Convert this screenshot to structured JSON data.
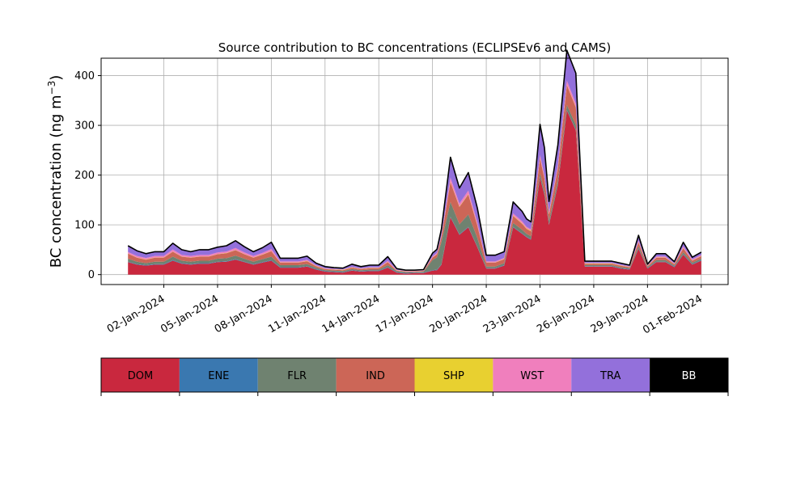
{
  "chart_data": {
    "type": "area",
    "stacked": true,
    "title": "Source contribution to BC concentrations (ECLIPSEv6 and CAMS)",
    "ylabel_main": "BC concentration (ng m",
    "ylabel_sup": "−3",
    "ylabel_close": ")",
    "xlabel": "",
    "xlim": [
      "2023-12-29T12:00",
      "2024-02-02T12:00"
    ],
    "ylim": [
      -20,
      435
    ],
    "grid": true,
    "yticks": [
      0,
      100,
      200,
      300,
      400
    ],
    "ytick_labels": [
      "0",
      "100",
      "200",
      "300",
      "400"
    ],
    "xticks": [
      "2024-01-02",
      "2024-01-05",
      "2024-01-08",
      "2024-01-11",
      "2024-01-14",
      "2024-01-17",
      "2024-01-20",
      "2024-01-23",
      "2024-01-26",
      "2024-01-29",
      "2024-02-01"
    ],
    "xtick_labels": [
      "02-Jan-2024",
      "05-Jan-2024",
      "08-Jan-2024",
      "11-Jan-2024",
      "14-Jan-2024",
      "17-Jan-2024",
      "20-Jan-2024",
      "23-Jan-2024",
      "26-Jan-2024",
      "29-Jan-2024",
      "01-Feb-2024"
    ],
    "x": [
      "2023-12-31T00:00",
      "2023-12-31T12:00",
      "2024-01-01T00:00",
      "2024-01-01T12:00",
      "2024-01-02T00:00",
      "2024-01-02T12:00",
      "2024-01-03T00:00",
      "2024-01-03T12:00",
      "2024-01-04T00:00",
      "2024-01-04T12:00",
      "2024-01-05T00:00",
      "2024-01-05T12:00",
      "2024-01-06T00:00",
      "2024-01-06T12:00",
      "2024-01-07T00:00",
      "2024-01-07T12:00",
      "2024-01-08T00:00",
      "2024-01-08T12:00",
      "2024-01-09T00:00",
      "2024-01-09T12:00",
      "2024-01-10T00:00",
      "2024-01-10T12:00",
      "2024-01-11T00:00",
      "2024-01-11T12:00",
      "2024-01-12T00:00",
      "2024-01-12T12:00",
      "2024-01-13T00:00",
      "2024-01-13T12:00",
      "2024-01-14T00:00",
      "2024-01-14T12:00",
      "2024-01-15T00:00",
      "2024-01-15T12:00",
      "2024-01-16T00:00",
      "2024-01-16T12:00",
      "2024-01-17T00:00",
      "2024-01-17T06:00",
      "2024-01-17T12:00",
      "2024-01-18T00:00",
      "2024-01-18T12:00",
      "2024-01-19T00:00",
      "2024-01-19T12:00",
      "2024-01-20T00:00",
      "2024-01-20T12:00",
      "2024-01-21T00:00",
      "2024-01-21T12:00",
      "2024-01-22T00:00",
      "2024-01-22T06:00",
      "2024-01-22T12:00",
      "2024-01-23T00:00",
      "2024-01-23T06:00",
      "2024-01-23T12:00",
      "2024-01-24T00:00",
      "2024-01-24T12:00",
      "2024-01-25T00:00",
      "2024-01-25T12:00",
      "2024-01-26T00:00",
      "2024-01-26T12:00",
      "2024-01-27T00:00",
      "2024-01-27T12:00",
      "2024-01-28T00:00",
      "2024-01-28T12:00",
      "2024-01-29T00:00",
      "2024-01-29T12:00",
      "2024-01-30T00:00",
      "2024-01-30T12:00",
      "2024-01-31T00:00",
      "2024-01-31T12:00",
      "2024-02-01T00:00"
    ],
    "series": [
      {
        "name": "DOM",
        "color": "#c9283e",
        "values": [
          25,
          20,
          18,
          20,
          20,
          28,
          22,
          20,
          22,
          22,
          25,
          26,
          30,
          25,
          20,
          24,
          28,
          14,
          14,
          14,
          16,
          10,
          6,
          5,
          4,
          8,
          6,
          7,
          7,
          14,
          4,
          2,
          3,
          3,
          8,
          9,
          20,
          115,
          80,
          95,
          55,
          12,
          12,
          18,
          95,
          82,
          75,
          70,
          195,
          160,
          100,
          180,
          330,
          290,
          16,
          16,
          16,
          16,
          12,
          10,
          52,
          12,
          25,
          25,
          15,
          40,
          20,
          28
        ]
      },
      {
        "name": "ENE",
        "color": "#3a78b0",
        "values": [
          1,
          1,
          1,
          1,
          1,
          1,
          1,
          1,
          1,
          1,
          1,
          1,
          1,
          1,
          1,
          1,
          1,
          1,
          1,
          1,
          1,
          1,
          1,
          1,
          1,
          1,
          1,
          1,
          1,
          1,
          1,
          1,
          1,
          1,
          1,
          1,
          1,
          1,
          1,
          1,
          1,
          1,
          1,
          1,
          1,
          1,
          1,
          1,
          1,
          1,
          1,
          1,
          1,
          1,
          1,
          1,
          1,
          1,
          1,
          1,
          1,
          1,
          1,
          1,
          1,
          1,
          1,
          1
        ]
      },
      {
        "name": "FLR",
        "color": "#6f8270",
        "values": [
          6,
          5,
          4,
          5,
          5,
          7,
          5,
          5,
          5,
          5,
          6,
          6,
          7,
          6,
          5,
          6,
          7,
          4,
          4,
          4,
          4,
          3,
          2,
          2,
          2,
          2,
          2,
          2,
          2,
          4,
          2,
          2,
          1,
          2,
          20,
          25,
          45,
          30,
          20,
          25,
          18,
          3,
          3,
          4,
          8,
          7,
          6,
          6,
          8,
          7,
          8,
          8,
          10,
          10,
          2,
          2,
          2,
          2,
          2,
          2,
          4,
          2,
          3,
          3,
          2,
          4,
          3,
          3
        ]
      },
      {
        "name": "IND",
        "color": "#cc6657",
        "values": [
          10,
          8,
          7,
          8,
          8,
          10,
          8,
          8,
          8,
          8,
          9,
          10,
          11,
          9,
          8,
          9,
          11,
          5,
          5,
          5,
          6,
          3,
          2,
          2,
          2,
          3,
          2,
          3,
          3,
          6,
          1,
          1,
          1,
          1,
          5,
          6,
          10,
          40,
          35,
          40,
          25,
          8,
          8,
          8,
          14,
          12,
          10,
          10,
          30,
          25,
          12,
          25,
          40,
          35,
          3,
          3,
          3,
          3,
          3,
          2,
          8,
          2,
          5,
          5,
          3,
          8,
          4,
          5
        ]
      },
      {
        "name": "SHP",
        "color": "#e8d030",
        "values": [
          0.5,
          0.5,
          0.5,
          0.5,
          0.5,
          0.5,
          0.5,
          0.5,
          0.5,
          0.5,
          0.5,
          0.5,
          0.5,
          0.5,
          0.5,
          0.5,
          0.5,
          0.5,
          0.5,
          0.5,
          0.5,
          0.5,
          0.5,
          0.5,
          0.5,
          0.5,
          0.5,
          0.5,
          0.5,
          0.5,
          0.5,
          0.5,
          0.5,
          0.5,
          0.5,
          0.5,
          0.5,
          1,
          1,
          1,
          1,
          0.5,
          0.5,
          0.5,
          1,
          1,
          1,
          1,
          1,
          1,
          1,
          1,
          1,
          1,
          0.5,
          0.5,
          0.5,
          0.5,
          0.5,
          0.5,
          0.5,
          0.5,
          0.5,
          0.5,
          0.5,
          0.5,
          0.5,
          0.5
        ]
      },
      {
        "name": "WST",
        "color": "#f07fbd",
        "values": [
          3,
          3,
          3,
          3,
          3,
          4,
          3,
          3,
          3,
          3,
          3,
          3,
          4,
          3,
          3,
          3,
          4,
          2,
          2,
          2,
          2,
          1,
          1,
          1,
          1,
          1,
          1,
          1,
          1,
          2,
          1,
          1,
          1,
          1,
          2,
          2,
          3,
          8,
          6,
          7,
          5,
          2,
          2,
          2,
          4,
          4,
          3,
          3,
          6,
          5,
          4,
          5,
          8,
          7,
          1,
          1,
          1,
          1,
          1,
          1,
          3,
          1,
          2,
          2,
          1,
          3,
          2,
          2
        ]
      },
      {
        "name": "TRA",
        "color": "#9370db",
        "values": [
          12,
          10,
          8,
          8,
          8,
          12,
          10,
          8,
          10,
          10,
          10,
          11,
          14,
          11,
          8,
          10,
          13,
          6,
          6,
          6,
          7,
          4,
          3,
          2,
          2,
          5,
          3,
          4,
          4,
          8,
          2,
          1,
          1,
          1,
          6,
          7,
          12,
          40,
          30,
          35,
          28,
          12,
          12,
          12,
          22,
          19,
          15,
          14,
          60,
          55,
          20,
          40,
          60,
          60,
          3,
          3,
          3,
          3,
          3,
          2,
          10,
          2,
          5,
          5,
          3,
          8,
          4,
          5
        ]
      },
      {
        "name": "BB",
        "color": "#000000",
        "values": [
          0.5,
          0.5,
          0.5,
          0.5,
          0.5,
          0.5,
          0.5,
          0.5,
          0.5,
          0.5,
          0.5,
          0.5,
          0.5,
          0.5,
          0.5,
          0.5,
          0.5,
          0.5,
          0.5,
          0.5,
          0.5,
          0.5,
          0.5,
          0.5,
          0.5,
          0.5,
          0.5,
          0.5,
          0.5,
          0.5,
          0.5,
          0.5,
          0.5,
          0.5,
          0.5,
          0.5,
          0.5,
          1,
          1,
          1,
          1,
          0.5,
          0.5,
          0.5,
          1,
          1,
          1,
          1,
          1,
          1,
          1,
          1,
          1,
          1,
          0.5,
          0.5,
          0.5,
          0.5,
          0.5,
          0.5,
          0.5,
          0.5,
          0.5,
          0.5,
          0.5,
          0.5,
          0.5,
          0.5
        ]
      }
    ],
    "total_line_color": "#000000",
    "legend": {
      "placement": "colorbar-below",
      "entries": [
        {
          "label": "DOM",
          "color": "#c9283e",
          "text_color": "#000000"
        },
        {
          "label": "ENE",
          "color": "#3a78b0",
          "text_color": "#000000"
        },
        {
          "label": "FLR",
          "color": "#6f8270",
          "text_color": "#000000"
        },
        {
          "label": "IND",
          "color": "#cc6657",
          "text_color": "#000000"
        },
        {
          "label": "SHP",
          "color": "#e8d030",
          "text_color": "#000000"
        },
        {
          "label": "WST",
          "color": "#f07fbd",
          "text_color": "#000000"
        },
        {
          "label": "TRA",
          "color": "#9370db",
          "text_color": "#000000"
        },
        {
          "label": "BB",
          "color": "#000000",
          "text_color": "#ffffff"
        }
      ]
    }
  }
}
